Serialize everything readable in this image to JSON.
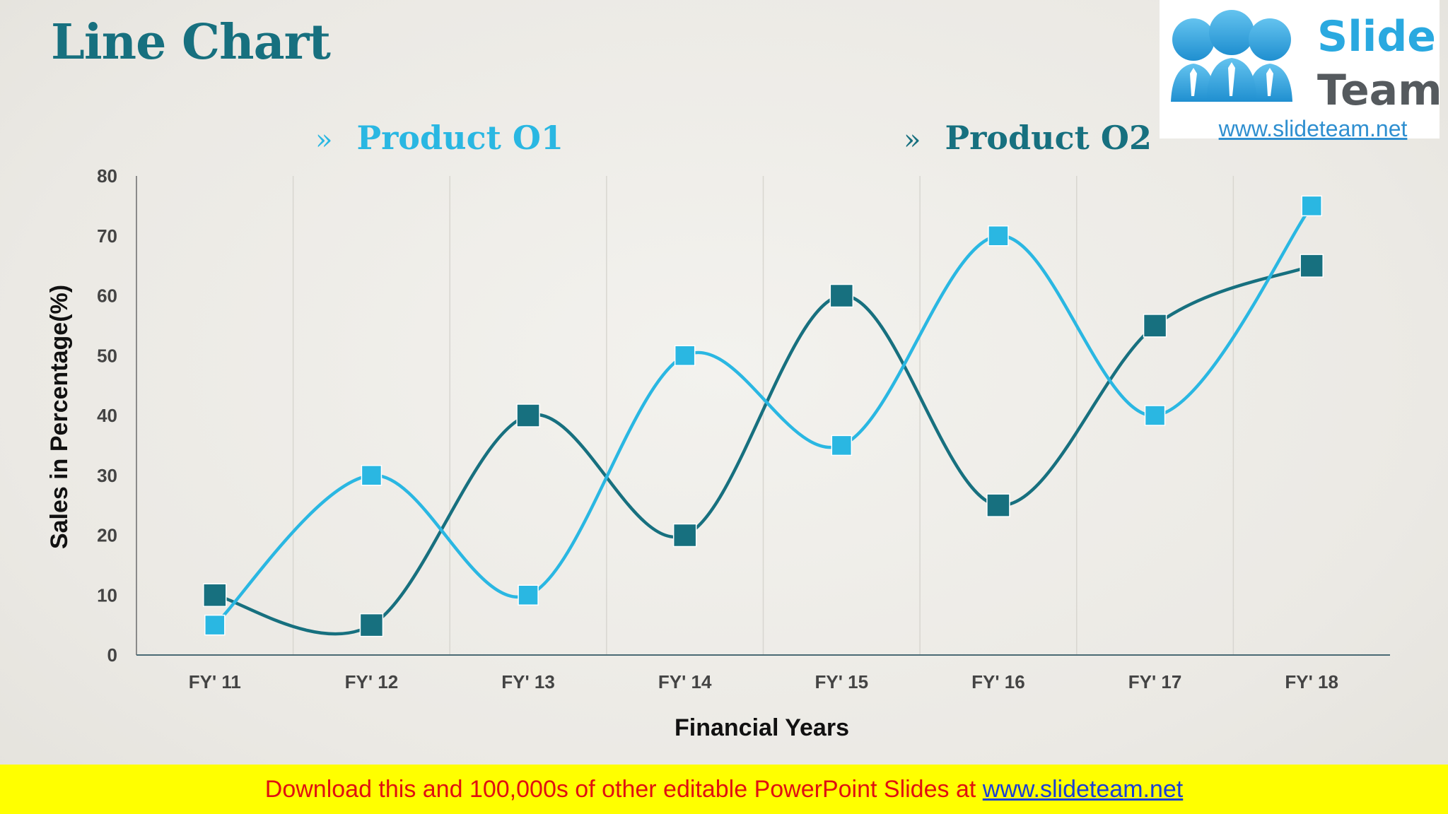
{
  "slide": {
    "title": "Line Chart"
  },
  "logo": {
    "word_1": "Slide",
    "word_2": "Team",
    "url": "www.slideteam.net"
  },
  "legend": {
    "marker": "»",
    "items": [
      "Product O1",
      "Product O2"
    ]
  },
  "banner": {
    "text": "Download this and 100,000s of other editable PowerPoint Slides at ",
    "link": "www.slideteam.net"
  },
  "colors": {
    "product_1": "#2ab7e2",
    "product_2": "#17707f",
    "title": "#17707f",
    "banner_bg": "#ffff00",
    "banner_text": "#e01010"
  },
  "chart_data": {
    "type": "line",
    "smooth": true,
    "marker": "square",
    "categories": [
      "FY' 11",
      "FY' 12",
      "FY' 13",
      "FY' 14",
      "FY' 15",
      "FY' 16",
      "FY' 17",
      "FY' 18"
    ],
    "series": [
      {
        "name": "Product O1",
        "color": "#2ab7e2",
        "values": [
          5,
          30,
          10,
          50,
          35,
          70,
          40,
          75
        ]
      },
      {
        "name": "Product O2",
        "color": "#17707f",
        "values": [
          10,
          5,
          40,
          20,
          60,
          25,
          55,
          65
        ]
      }
    ],
    "xlabel": "Financial Years",
    "ylabel": "Sales in Percentage(%)",
    "ylim": [
      0,
      80
    ],
    "yticks": [
      0,
      10,
      20,
      30,
      40,
      50,
      60,
      70,
      80
    ],
    "grid": "vertical",
    "legend": "top"
  }
}
